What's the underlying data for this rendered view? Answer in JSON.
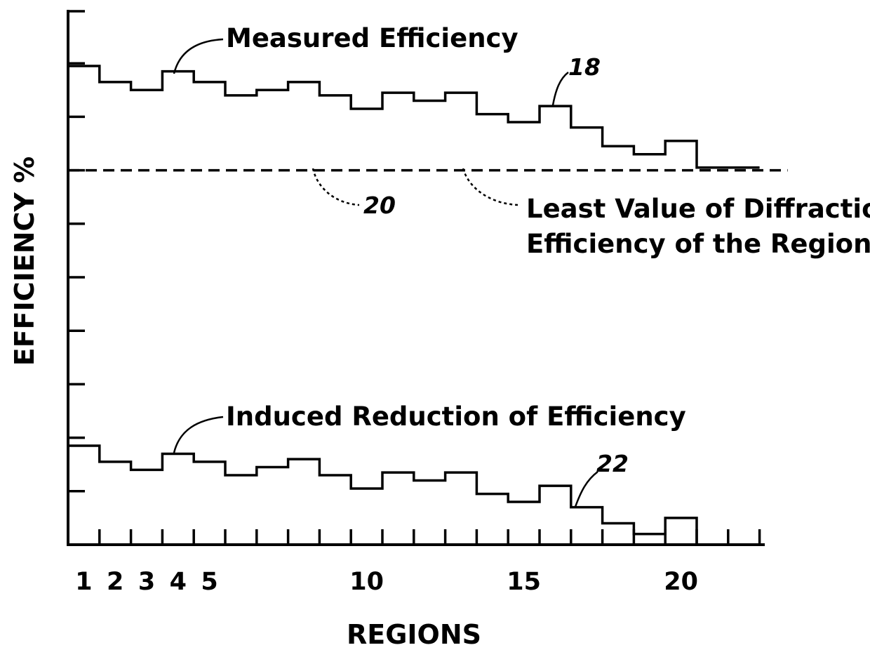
{
  "chart_data": {
    "type": "line",
    "step": true,
    "title": "",
    "xlabel": "REGIONS",
    "ylabel": "EFFICIENCY %",
    "x_tick_labels": [
      "1",
      "2",
      "3",
      "4",
      "5",
      "10",
      "15",
      "20"
    ],
    "x_tick_label_positions": [
      1,
      2,
      3,
      4,
      5,
      10,
      15,
      20
    ],
    "xlim": [
      0,
      22
    ],
    "ylim": [
      0,
      9
    ],
    "y_tick_count": 9,
    "grid": false,
    "series": [
      {
        "name": "Measured Efficiency",
        "ref": "18",
        "values": [
          8.95,
          8.65,
          8.5,
          8.85,
          8.65,
          8.4,
          8.5,
          8.65,
          8.4,
          8.15,
          8.45,
          8.3,
          8.45,
          8.05,
          7.9,
          8.2,
          7.8,
          7.45,
          7.3,
          7.55,
          7.05,
          7.05
        ]
      },
      {
        "name": "Induced Reduction of Efficiency",
        "ref": "22",
        "values": [
          1.85,
          1.55,
          1.4,
          1.7,
          1.55,
          1.3,
          1.45,
          1.6,
          1.3,
          1.05,
          1.35,
          1.2,
          1.35,
          0.95,
          0.8,
          1.1,
          0.7,
          0.4,
          0.2,
          0.5,
          0.0,
          0.0
        ]
      }
    ],
    "reference_line": {
      "value": 7.0,
      "style": "dashed",
      "ref": "20",
      "label_lines": [
        "Least Value of Diffraction",
        "Efficiency of the Regions"
      ]
    }
  }
}
